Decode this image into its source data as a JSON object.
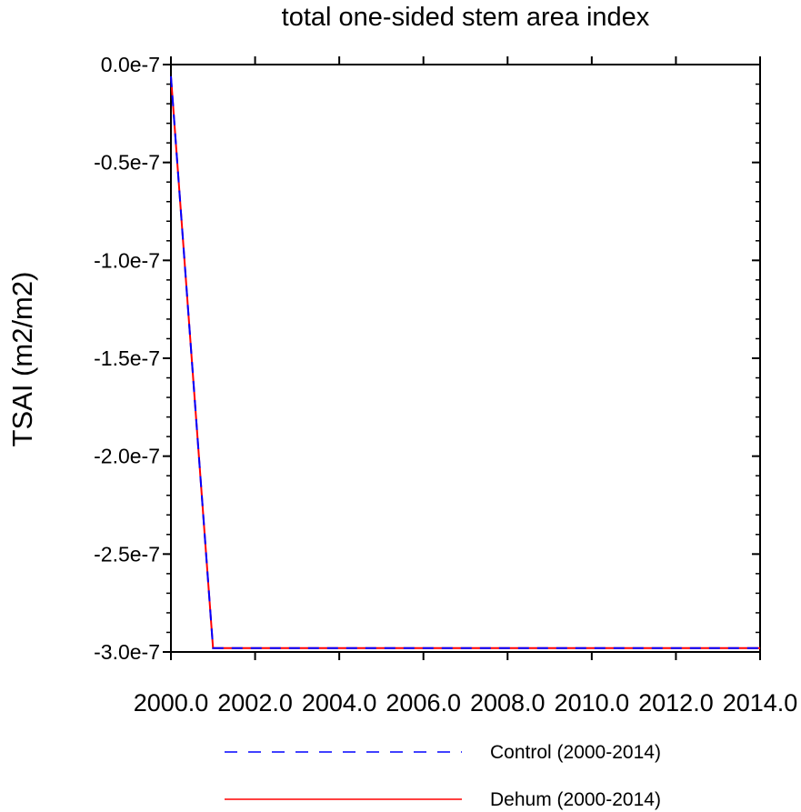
{
  "chart_data": {
    "type": "line",
    "title": "total one-sided stem area index",
    "xlabel": "",
    "ylabel": "TSAI  (m2/m2)",
    "xlim": [
      2000.0,
      2014.0
    ],
    "ylim": [
      -3e-07,
      0.0
    ],
    "x_ticks": [
      2000,
      2002,
      2004,
      2006,
      2008,
      2010,
      2012,
      2014
    ],
    "x_tick_labels": [
      "2000.0",
      "2002.0",
      "2004.0",
      "2006.0",
      "2008.0",
      "2010.0",
      "2012.0",
      "2014.0"
    ],
    "y_ticks": [
      0.0,
      -5e-08,
      -1e-07,
      -1.5e-07,
      -2e-07,
      -2.5e-07,
      -3e-07
    ],
    "y_tick_labels": [
      "0.0e-7",
      "-0.5e-7",
      "-1.0e-7",
      "-1.5e-7",
      "-2.0e-7",
      "-2.5e-7",
      "-3.0e-7"
    ],
    "grid": false,
    "legend_position": "bottom",
    "x": [
      2000,
      2001,
      2002,
      2003,
      2004,
      2005,
      2006,
      2007,
      2008,
      2009,
      2010,
      2011,
      2012,
      2013,
      2014
    ],
    "series": [
      {
        "name": "Control (2000-2014)",
        "color": "#0000ff",
        "style": "dashed",
        "values": [
          -6e-09,
          -2.98e-07,
          -2.98e-07,
          -2.98e-07,
          -2.98e-07,
          -2.98e-07,
          -2.98e-07,
          -2.98e-07,
          -2.98e-07,
          -2.98e-07,
          -2.98e-07,
          -2.98e-07,
          -2.98e-07,
          -2.98e-07,
          -2.98e-07
        ]
      },
      {
        "name": "Dehum (2000-2014)",
        "color": "#ff0000",
        "style": "solid",
        "values": [
          -6e-09,
          -2.98e-07,
          -2.98e-07,
          -2.98e-07,
          -2.98e-07,
          -2.98e-07,
          -2.98e-07,
          -2.98e-07,
          -2.98e-07,
          -2.98e-07,
          -2.98e-07,
          -2.98e-07,
          -2.98e-07,
          -2.98e-07,
          -2.98e-07
        ]
      }
    ]
  }
}
